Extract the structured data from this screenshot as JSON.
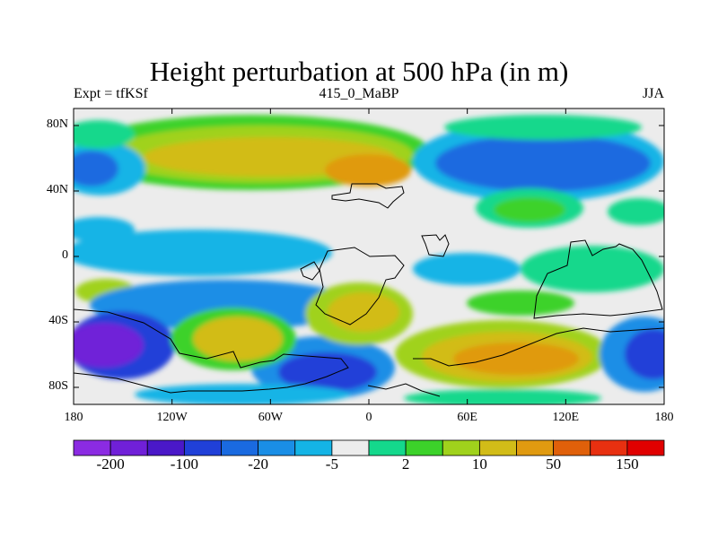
{
  "title": "Height perturbation at 500 hPa (in m)",
  "subtitle_left": "Expt = tfKSf",
  "subtitle_center": "415_0_MaBP",
  "subtitle_right": "JJA",
  "y_ticks": [
    "80N",
    "40N",
    "0",
    "40S",
    "80S"
  ],
  "x_ticks": [
    "180",
    "120W",
    "60W",
    "0",
    "60E",
    "120E",
    "180"
  ],
  "colorbar": {
    "colors": [
      "#8b2be2",
      "#7020d8",
      "#4a18c8",
      "#2040d8",
      "#1a6ae0",
      "#1a8ee6",
      "#14b4e6",
      "#ececec",
      "#14d88c",
      "#3cd22a",
      "#a0d21c",
      "#d2bc18",
      "#e09a10",
      "#e0600a",
      "#e83010",
      "#e00000"
    ],
    "labels": [
      "-200",
      "-100",
      "-20",
      "-5",
      "2",
      "10",
      "50",
      "150"
    ]
  },
  "map_colors": {
    "neutral": "#ececec",
    "light_blue": "#14b4e6",
    "mid_blue": "#1a8ee6",
    "blue": "#1a6ae0",
    "deep_blue": "#2040d8",
    "indigo": "#4a18c8",
    "violet": "#7020d8",
    "teal": "#14d88c",
    "green": "#3cd22a",
    "yellow_green": "#a0d21c",
    "yellow": "#d2bc18",
    "orange": "#e09a10",
    "dark_orange": "#e0600a"
  }
}
